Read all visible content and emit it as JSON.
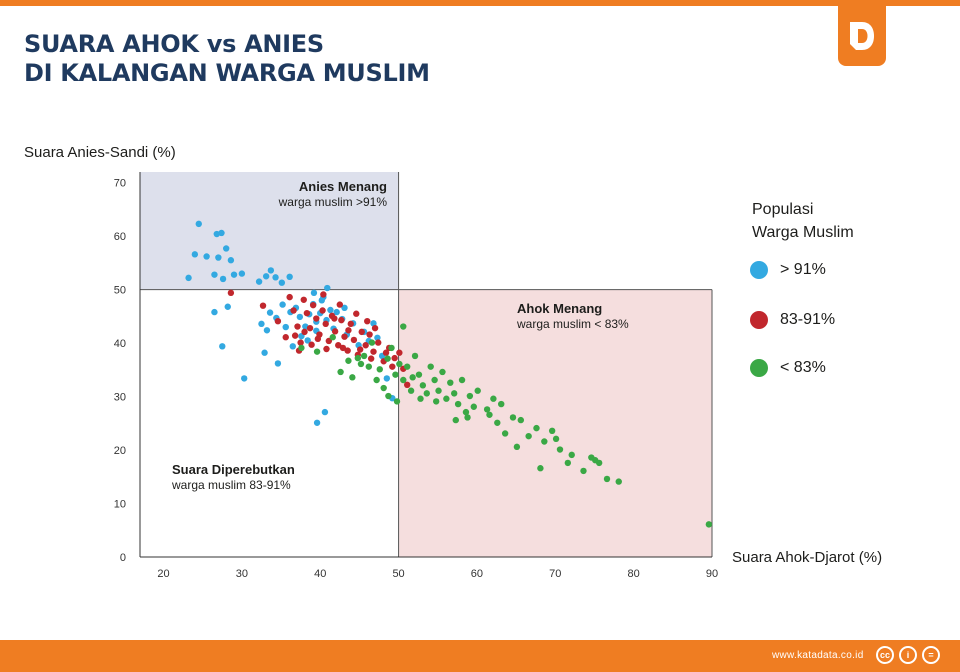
{
  "title": {
    "line1": "SUARA AHOK vs ANIES",
    "line2": "DI KALANGAN WARGA MUSLIM"
  },
  "logo": {
    "icon": "katadata-d-logo-icon"
  },
  "footer": {
    "site": "www.katadata.co.id",
    "license_icons": [
      "cc-icon",
      "by-icon",
      "nd-icon"
    ],
    "license_glyphs": [
      "cc",
      "i",
      "="
    ]
  },
  "colors": {
    "accent": "#ef7d22",
    "title": "#1f3a5f",
    "blue": "#33a9e1",
    "red": "#c1272d",
    "green": "#3aa845",
    "anies_region": "#dde0ec",
    "ahok_region": "#f5dede"
  },
  "chart_data": {
    "type": "scatter",
    "xlabel": "Suara Ahok-Djarot (%)",
    "ylabel": "Suara Anies-Sandi (%)",
    "xlim": [
      17,
      90
    ],
    "ylim": [
      0,
      72
    ],
    "xticks": [
      20,
      30,
      40,
      50,
      60,
      70,
      80,
      90
    ],
    "yticks": [
      0,
      10,
      20,
      30,
      40,
      50,
      60,
      70
    ],
    "thresholds": {
      "x": 50,
      "y": 50
    },
    "regions": [
      {
        "name": "anies",
        "title": "Anies Menang",
        "subtitle": "warga muslim >91%"
      },
      {
        "name": "ahok",
        "title": "Ahok Menang",
        "subtitle": "warga muslim < 83%"
      },
      {
        "name": "contested",
        "title": "Suara Diperebutkan",
        "subtitle": "warga muslim 83-91%"
      }
    ],
    "legend": {
      "title_line1": "Populasi",
      "title_line2": "Warga Muslim",
      "position": "right",
      "entries": [
        {
          "label": "> 91%",
          "color": "#33a9e1"
        },
        {
          "label": "83-91%",
          "color": "#c1272d"
        },
        {
          "label": "< 83%",
          "color": "#3aa845"
        }
      ]
    },
    "series": [
      {
        "name": "> 91%",
        "color": "#33a9e1",
        "points": [
          [
            24.5,
            62.3
          ],
          [
            26.8,
            60.4
          ],
          [
            27.4,
            60.6
          ],
          [
            24,
            56.6
          ],
          [
            25.5,
            56.2
          ],
          [
            27,
            56
          ],
          [
            28,
            57.7
          ],
          [
            28.6,
            55.5
          ],
          [
            26.5,
            52.8
          ],
          [
            27.6,
            52
          ],
          [
            29,
            52.8
          ],
          [
            23.2,
            52.2
          ],
          [
            32.2,
            51.5
          ],
          [
            33.1,
            52.5
          ],
          [
            33.7,
            53.6
          ],
          [
            34.3,
            52.3
          ],
          [
            35.1,
            51.3
          ],
          [
            36.1,
            52.4
          ],
          [
            30,
            53
          ],
          [
            26.5,
            45.8
          ],
          [
            28.2,
            46.8
          ],
          [
            32.5,
            43.6
          ],
          [
            33.2,
            42.4
          ],
          [
            33.6,
            45.7
          ],
          [
            34.4,
            44.7
          ],
          [
            35.2,
            47.2
          ],
          [
            35.6,
            43
          ],
          [
            36.2,
            45.8
          ],
          [
            36.9,
            46.6
          ],
          [
            37.4,
            44.9
          ],
          [
            38.1,
            43.1
          ],
          [
            38.6,
            45.4
          ],
          [
            39.1,
            47.3
          ],
          [
            39.5,
            44
          ],
          [
            40,
            45.6
          ],
          [
            40.4,
            48.6
          ],
          [
            40.8,
            44.3
          ],
          [
            41.3,
            46.2
          ],
          [
            41.7,
            42.7
          ],
          [
            42.1,
            45.8
          ],
          [
            42.8,
            44.5
          ],
          [
            43.4,
            41.6
          ],
          [
            44.2,
            43.7
          ],
          [
            44.9,
            39.6
          ],
          [
            45.6,
            42.1
          ],
          [
            46.2,
            40.4
          ],
          [
            46.8,
            43.7
          ],
          [
            47.3,
            41
          ],
          [
            47.9,
            37.6
          ],
          [
            48.5,
            33.4
          ],
          [
            49.2,
            29.7
          ],
          [
            36.5,
            39.4
          ],
          [
            37.6,
            41.3
          ],
          [
            38.4,
            40.5
          ],
          [
            39.5,
            42.3
          ],
          [
            40.2,
            48
          ],
          [
            40.9,
            50.3
          ],
          [
            39.2,
            49.4
          ],
          [
            43.1,
            46.6
          ],
          [
            27.5,
            39.4
          ],
          [
            30.3,
            33.4
          ],
          [
            32.9,
            38.2
          ],
          [
            34.6,
            36.2
          ],
          [
            39.6,
            25.1
          ],
          [
            40.6,
            27.1
          ]
        ]
      },
      {
        "name": "83-91%",
        "color": "#c1272d",
        "points": [
          [
            28.6,
            49.4
          ],
          [
            32.7,
            47
          ],
          [
            34.6,
            44.1
          ],
          [
            35.6,
            41.1
          ],
          [
            36.1,
            48.6
          ],
          [
            36.6,
            46.1
          ],
          [
            37.1,
            43.1
          ],
          [
            37.5,
            40.1
          ],
          [
            37.9,
            48.1
          ],
          [
            38.3,
            45.6
          ],
          [
            38.7,
            42.8
          ],
          [
            39.1,
            47.1
          ],
          [
            39.5,
            44.6
          ],
          [
            39.9,
            41.6
          ],
          [
            40.3,
            46.1
          ],
          [
            40.7,
            43.6
          ],
          [
            41.1,
            40.4
          ],
          [
            41.5,
            45.1
          ],
          [
            41.9,
            42.2
          ],
          [
            42.3,
            39.6
          ],
          [
            42.7,
            44.3
          ],
          [
            43.1,
            41.2
          ],
          [
            43.5,
            38.6
          ],
          [
            43.9,
            43.6
          ],
          [
            44.3,
            40.6
          ],
          [
            44.8,
            37.8
          ],
          [
            45.3,
            42.1
          ],
          [
            45.8,
            39.6
          ],
          [
            46.3,
            41.6
          ],
          [
            46.8,
            38.4
          ],
          [
            47.4,
            40.1
          ],
          [
            48.1,
            36.6
          ],
          [
            48.8,
            39.1
          ],
          [
            49.5,
            37.2
          ],
          [
            50.1,
            38.2
          ],
          [
            50.6,
            35.2
          ],
          [
            51.1,
            32.2
          ],
          [
            47,
            42.8
          ],
          [
            46,
            44.1
          ],
          [
            44.6,
            45.5
          ],
          [
            42.5,
            47.2
          ],
          [
            40.4,
            49.1
          ],
          [
            38,
            42.1
          ],
          [
            36.8,
            41.4
          ],
          [
            39.7,
            40.8
          ],
          [
            41.8,
            44.6
          ],
          [
            43.6,
            42.4
          ],
          [
            45.1,
            38.8
          ],
          [
            46.5,
            37.1
          ],
          [
            48.4,
            38.2
          ],
          [
            49.2,
            35.6
          ],
          [
            37.3,
            38.6
          ],
          [
            38.9,
            39.7
          ],
          [
            40.8,
            38.9
          ],
          [
            42.9,
            39.1
          ]
        ]
      },
      {
        "name": "< 83%",
        "color": "#3aa845",
        "points": [
          [
            37.6,
            39.1
          ],
          [
            39.6,
            38.4
          ],
          [
            41.6,
            41.1
          ],
          [
            43.6,
            36.7
          ],
          [
            44.1,
            33.6
          ],
          [
            45.6,
            37.6
          ],
          [
            46.6,
            40.1
          ],
          [
            47.6,
            35.1
          ],
          [
            48.1,
            31.6
          ],
          [
            48.6,
            37.1
          ],
          [
            49.6,
            34.1
          ],
          [
            49.1,
            39.1
          ],
          [
            50.1,
            36.1
          ],
          [
            50.6,
            33.1
          ],
          [
            50.6,
            43.1
          ],
          [
            51.1,
            35.6
          ],
          [
            51.6,
            31.1
          ],
          [
            52.1,
            37.6
          ],
          [
            52.6,
            34.1
          ],
          [
            53.1,
            32.1
          ],
          [
            53.6,
            30.6
          ],
          [
            54.1,
            35.6
          ],
          [
            54.6,
            33.1
          ],
          [
            55.1,
            31.1
          ],
          [
            55.6,
            34.6
          ],
          [
            56.1,
            29.6
          ],
          [
            56.6,
            32.6
          ],
          [
            57.1,
            30.6
          ],
          [
            57.6,
            28.6
          ],
          [
            58.1,
            33.1
          ],
          [
            58.6,
            27.1
          ],
          [
            59.1,
            30.1
          ],
          [
            59.6,
            28.1
          ],
          [
            60.1,
            31.1
          ],
          [
            61.6,
            26.6
          ],
          [
            62.1,
            29.6
          ],
          [
            62.6,
            25.1
          ],
          [
            63.1,
            28.6
          ],
          [
            63.6,
            23.1
          ],
          [
            64.6,
            26.1
          ],
          [
            65.1,
            20.6
          ],
          [
            65.6,
            25.6
          ],
          [
            66.6,
            22.6
          ],
          [
            67.6,
            24.1
          ],
          [
            68.1,
            16.6
          ],
          [
            68.6,
            21.6
          ],
          [
            69.6,
            23.6
          ],
          [
            70.1,
            22.1
          ],
          [
            70.6,
            20.1
          ],
          [
            71.6,
            17.6
          ],
          [
            72.1,
            19.1
          ],
          [
            73.6,
            16.1
          ],
          [
            74.6,
            18.6
          ],
          [
            75.1,
            18.1
          ],
          [
            75.6,
            17.6
          ],
          [
            76.6,
            14.6
          ],
          [
            78.1,
            14.1
          ],
          [
            89.6,
            6.1
          ],
          [
            46.2,
            35.6
          ],
          [
            47.2,
            33.1
          ],
          [
            48.7,
            30.1
          ],
          [
            49.8,
            29.1
          ],
          [
            51.8,
            33.6
          ],
          [
            52.8,
            29.6
          ],
          [
            54.8,
            29.1
          ],
          [
            57.3,
            25.6
          ],
          [
            58.8,
            26.1
          ],
          [
            61.3,
            27.6
          ],
          [
            45.2,
            36.1
          ],
          [
            42.6,
            34.6
          ],
          [
            44.8,
            37.2
          ]
        ]
      }
    ]
  }
}
